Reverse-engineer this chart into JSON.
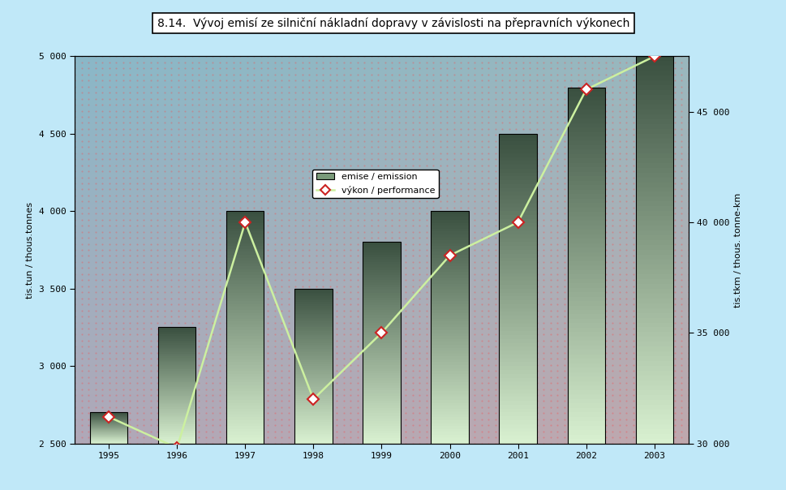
{
  "title": "8.14.  Vývoj emisí ze silniční nákladní dopravy v závislosti na přepravních výkonech",
  "years": [
    1995,
    1996,
    1997,
    1998,
    1999,
    2000,
    2001,
    2002,
    2003
  ],
  "bar_values": [
    2700,
    3250,
    4000,
    3500,
    3800,
    4000,
    4500,
    4800,
    5000
  ],
  "line_values": [
    31200,
    29800,
    40000,
    32000,
    35000,
    38500,
    40000,
    46000,
    47500
  ],
  "ylabel_left": "tis.tun / thous.tonnes",
  "ylabel_right": "tis.tkm / thous. tonne-km",
  "ylim_left": [
    2500,
    5000
  ],
  "ylim_right": [
    30000,
    47500
  ],
  "yticks_left": [
    2500,
    3000,
    3500,
    4000,
    4500,
    5000
  ],
  "yticks_right": [
    30000,
    35000,
    40000,
    45000
  ],
  "legend_bar": "emise / emission",
  "legend_line": "výkon / performance",
  "bg_color": "#c0e8f8",
  "bg_top_left": "#9ab8c8",
  "bg_bottom_right": "#c8b8c0",
  "bar_top_color": "#3a5040",
  "bar_bottom_color": "#d8f0d0",
  "line_color": "#ccf0a0",
  "line_marker_face": "#ffffff",
  "line_marker_edge": "#cc2222",
  "dot_color": "#ff4444",
  "title_fontsize": 10,
  "tick_fontsize": 8,
  "label_fontsize": 8,
  "bar_width": 0.55
}
